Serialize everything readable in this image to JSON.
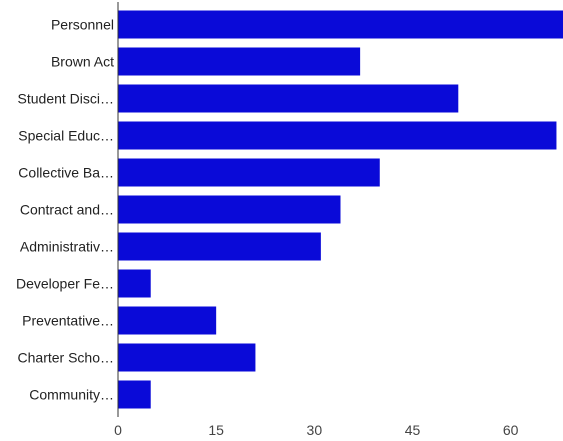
{
  "chart_data": {
    "type": "bar",
    "orientation": "horizontal",
    "categories": [
      "Personnel",
      "Brown Act",
      "Student Disci…",
      "Special Educ…",
      "Collective Ba…",
      "Contract and…",
      "Administrativ…",
      "Developer Fe…",
      "Preventative…",
      "Charter Scho…",
      "Community…"
    ],
    "values": [
      68,
      37,
      52,
      67,
      40,
      34,
      31,
      5,
      15,
      21,
      5
    ],
    "xlim": [
      0,
      68
    ],
    "xticks": [
      0,
      15,
      30,
      45,
      60
    ],
    "bar_color": "#0a0ad8",
    "grid": false,
    "legend": "none"
  }
}
